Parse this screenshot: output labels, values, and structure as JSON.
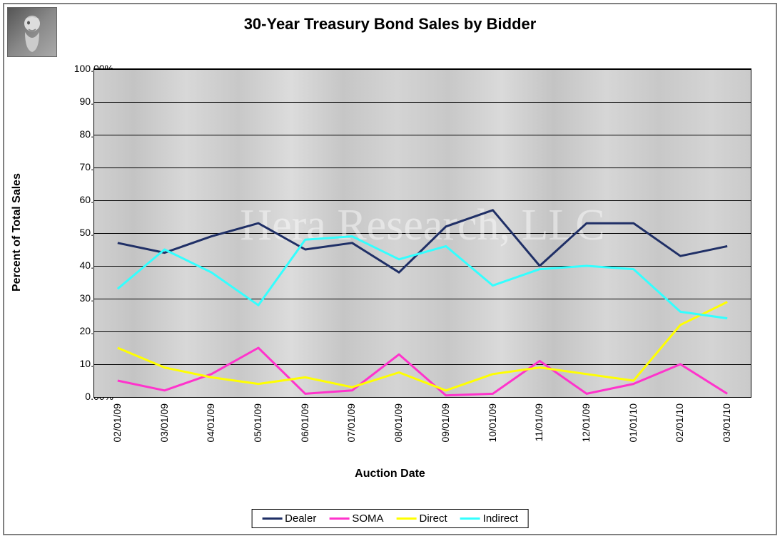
{
  "chart": {
    "type": "line",
    "title": "30-Year Treasury Bond Sales by Bidder",
    "title_fontsize": 22,
    "xaxis_title": "Auction Date",
    "yaxis_title": "Percent of Total Sales",
    "axis_title_fontsize": 16,
    "tick_fontsize": 14,
    "background_gradient": [
      "#d0d0d0",
      "#c4c4c4",
      "#d8d8d8",
      "#c8c8c8",
      "#dcdcdc",
      "#c6c6c6"
    ],
    "border_color": "#808080",
    "plot_border_color": "#000000",
    "grid_color": "#000000",
    "watermark_text": "Hera Research, LLC",
    "watermark_color": "rgba(255,255,255,0.45)",
    "watermark_fontsize": 62,
    "ylim": [
      0,
      100
    ],
    "ytick_step": 10,
    "ytick_format": "0.00%",
    "ytick_labels": [
      "0.00%",
      "10.00%",
      "20.00%",
      "30.00%",
      "40.00%",
      "50.00%",
      "60.00%",
      "70.00%",
      "80.00%",
      "90.00%",
      "100.00%"
    ],
    "x_categories": [
      "02/01/09",
      "03/01/09",
      "04/01/09",
      "05/01/09",
      "06/01/09",
      "07/01/09",
      "08/01/09",
      "09/01/09",
      "10/01/09",
      "11/01/09",
      "12/01/09",
      "01/01/10",
      "02/01/10",
      "03/01/10"
    ],
    "line_width": 3,
    "series": [
      {
        "name": "Dealer",
        "color": "#1f2f66",
        "values": [
          47,
          44,
          49,
          53,
          45,
          47,
          38,
          52,
          57,
          40,
          53,
          53,
          43,
          46
        ]
      },
      {
        "name": "SOMA",
        "color": "#ff33cc",
        "values": [
          5,
          2,
          7,
          15,
          1,
          2,
          13,
          0.5,
          1,
          11,
          1,
          4,
          10,
          1
        ]
      },
      {
        "name": "Direct",
        "color": "#ffff00",
        "values": [
          15,
          9,
          6,
          4,
          6,
          3,
          7.5,
          2,
          7,
          9,
          7,
          5,
          22,
          29
        ]
      },
      {
        "name": "Indirect",
        "color": "#33ffff",
        "values": [
          33,
          45,
          38,
          28,
          48,
          49,
          42,
          46,
          34,
          39,
          40,
          39,
          26,
          24
        ]
      }
    ],
    "legend": {
      "position": "bottom",
      "border_color": "#000000",
      "background": "#ffffff",
      "items": [
        "Dealer",
        "SOMA",
        "Direct",
        "Indirect"
      ]
    }
  }
}
